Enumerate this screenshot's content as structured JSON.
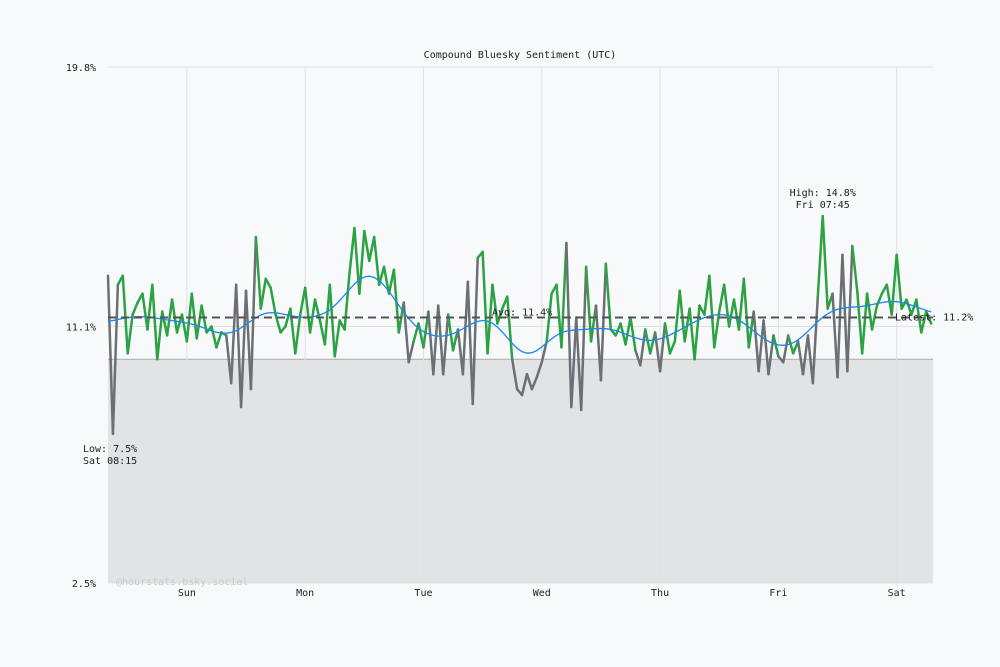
{
  "chart_data": {
    "type": "line",
    "title": "Compound Bluesky Sentiment (UTC)",
    "xlabel": "",
    "ylabel": "",
    "ylim": [
      2.5,
      19.8
    ],
    "y_tick_labels": [
      "19.8%",
      "11.1%",
      "2.5%"
    ],
    "y_ticks": [
      19.8,
      11.1,
      2.5
    ],
    "x_tick_labels": [
      "Sun",
      "Mon",
      "Tue",
      "Wed",
      "Thu",
      "Fri",
      "Sat"
    ],
    "start": "Sat 08:00",
    "interval": "1h",
    "grid": true,
    "threshold": 10.0,
    "series": [
      {
        "values": [
          12.8,
          7.5,
          12.5,
          12.8,
          10.2,
          11.5,
          11.9,
          12.2,
          11.0,
          12.5,
          10.0,
          11.6,
          10.8,
          12.0,
          10.9,
          11.5,
          10.6,
          12.2,
          10.7,
          11.8,
          10.9,
          11.1,
          10.4,
          10.9,
          10.8,
          9.2,
          12.5,
          8.4,
          12.3,
          9.0,
          14.1,
          11.7,
          12.7,
          12.4,
          11.5,
          10.9,
          11.1,
          11.7,
          10.2,
          11.5,
          12.4,
          10.9,
          12.0,
          11.3,
          10.5,
          12.5,
          10.1,
          11.3,
          11.0,
          12.9,
          14.4,
          12.2,
          14.3,
          13.3,
          14.1,
          12.5,
          13.1,
          12.2,
          13.0,
          10.9,
          11.9,
          9.9,
          10.6,
          11.2,
          10.4,
          11.6,
          9.5,
          11.8,
          9.5,
          11.5,
          10.3,
          11.0,
          9.5,
          12.6,
          8.5,
          13.4,
          13.6,
          10.2,
          12.5,
          11.2,
          11.7,
          12.1,
          10.0,
          9.0,
          8.8,
          9.5,
          9.0,
          9.4,
          9.9,
          10.6,
          12.2,
          12.5,
          10.4,
          13.9,
          8.4,
          11.4,
          8.3,
          13.1,
          10.6,
          11.8,
          9.3,
          13.2,
          11.0,
          10.8,
          11.2,
          10.5,
          11.4,
          10.3,
          9.8,
          11.0,
          10.2,
          10.9,
          9.6,
          11.2,
          10.2,
          10.6,
          12.3,
          10.6,
          11.7,
          10.0,
          11.8,
          11.5,
          12.8,
          10.4,
          11.6,
          12.5,
          11.1,
          12.0,
          11.0,
          12.7,
          10.4,
          11.6,
          9.6,
          11.3,
          9.5,
          10.8,
          10.1,
          9.9,
          10.8,
          10.2,
          10.6,
          9.5,
          10.8,
          9.2,
          12.1,
          14.8,
          11.7,
          12.2,
          9.4,
          13.5,
          9.6,
          13.8,
          12.3,
          10.2,
          12.2,
          11.0,
          11.8,
          12.2,
          12.5,
          11.5,
          13.5,
          11.7,
          12.0,
          11.5,
          12.0,
          10.9,
          11.6,
          11.2
        ]
      }
    ],
    "annotations": {
      "high": {
        "line1": "High: 14.8%",
        "line2": "Fri 07:45"
      },
      "low": {
        "line1": "Low: 7.5%",
        "line2": "Sat 08:15"
      },
      "avg": {
        "label": "Avg: 11.4%",
        "value": 11.4
      },
      "latest": {
        "label": "Latest: 11.2%",
        "value": 11.2
      }
    },
    "watermark": "@hourstats.bsky.social",
    "colors": {
      "above": "#2ca243",
      "below": "#6b7075",
      "smooth": "#1e88e5",
      "below_fill": "#e2e3e5",
      "avg_line": "#555555"
    }
  }
}
